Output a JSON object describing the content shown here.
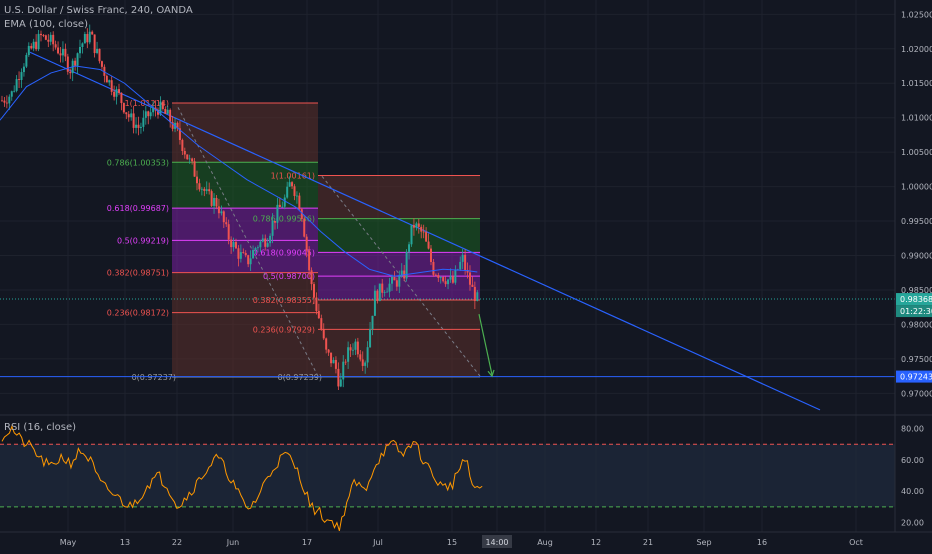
{
  "header": {
    "symbol": "U.S. Dollar / Swiss Franc, 240, OANDA",
    "ema_label": "EMA (100, close)",
    "rsi_label": "RSI (16, close)"
  },
  "colors": {
    "background": "#131722",
    "up": "#26a69a",
    "down": "#ef5350",
    "ema": "#2962ff",
    "trendline": "#2962ff",
    "rsi": "#ff9800",
    "fib_green": "#1b5e20",
    "fib_purple": "#7b1fa2",
    "fib_brown": "#5d2f2a"
  },
  "price_axis": {
    "labels": [
      "1.02500",
      "1.02000",
      "1.01500",
      "1.01000",
      "1.00500",
      "1.00000",
      "0.99500",
      "0.99000",
      "0.98500",
      "0.98000",
      "0.97500",
      "0.97000"
    ],
    "last_price": "0.98368",
    "countdown": "01:22:30",
    "marked_level": "0.97243"
  },
  "rsi_axis": {
    "labels": [
      "80.00",
      "60.00",
      "40.00",
      "20.00"
    ]
  },
  "time_axis": {
    "labels": [
      "May",
      "13",
      "22",
      "Jun",
      "17",
      "Jul",
      "15",
      "14:00",
      "Aug",
      "12",
      "21",
      "Sep",
      "16",
      "Oct"
    ]
  },
  "fib_left": {
    "levels": [
      {
        "label": "1(1.01214)",
        "value": 1.01214
      },
      {
        "label": "0.786(1.00353)",
        "value": 1.00353
      },
      {
        "label": "0.618(0.99687)",
        "value": 0.99687
      },
      {
        "label": "0.5(0.99219)",
        "value": 0.99219
      },
      {
        "label": "0.382(0.98751)",
        "value": 0.98751
      },
      {
        "label": "0.236(0.98172)",
        "value": 0.98172
      },
      {
        "label": "0(0.97237)",
        "value": 0.97237
      }
    ]
  },
  "fib_right": {
    "levels": [
      {
        "label": "1(1.00161)",
        "value": 1.00161
      },
      {
        "label": "0.786(0.99536)",
        "value": 0.99536
      },
      {
        "label": "0.618(0.99045)",
        "value": 0.99045
      },
      {
        "label": "0.5(0.98700)",
        "value": 0.987
      },
      {
        "label": "0.382(0.98355)",
        "value": 0.98355
      },
      {
        "label": "0.236(0.97929)",
        "value": 0.97929
      },
      {
        "label": "0(0.97239)",
        "value": 0.97239
      }
    ]
  },
  "chart_data": {
    "type": "candlestick",
    "title": "U.S. Dollar / Swiss Franc, 240, OANDA",
    "ylim": [
      0.967,
      1.0265
    ],
    "rsi_ylim": [
      14,
      88
    ],
    "rsi_bands": [
      70,
      30
    ],
    "price_path": [
      [
        0,
        1.0125
      ],
      [
        2,
        1.0135
      ],
      [
        4,
        1.0175
      ],
      [
        6,
        1.02
      ],
      [
        8,
        1.0218
      ],
      [
        10,
        1.021
      ],
      [
        12,
        1.0195
      ],
      [
        14,
        1.017
      ],
      [
        16,
        1.0205
      ],
      [
        18,
        1.0222
      ],
      [
        20,
        1.018
      ],
      [
        22,
        1.015
      ],
      [
        24,
        1.013
      ],
      [
        26,
        1.01
      ],
      [
        28,
        1.0085
      ],
      [
        30,
        1.0105
      ],
      [
        32,
        1.0115
      ],
      [
        34,
        1.01
      ],
      [
        36,
        1.0075
      ],
      [
        38,
        1.004
      ],
      [
        40,
        1.001
      ],
      [
        42,
        0.9985
      ],
      [
        44,
        0.9975
      ],
      [
        46,
        0.993
      ],
      [
        48,
        0.9905
      ],
      [
        50,
        0.989
      ],
      [
        52,
        0.9915
      ],
      [
        54,
        0.9925
      ],
      [
        56,
        0.996
      ],
      [
        58,
        0.9985
      ],
      [
        59,
        1.001
      ],
      [
        61,
        0.997
      ],
      [
        62,
        0.992
      ],
      [
        63,
        0.986
      ],
      [
        65,
        0.98
      ],
      [
        66,
        0.976
      ],
      [
        68,
        0.974
      ],
      [
        69,
        0.971
      ],
      [
        70,
        0.975
      ],
      [
        72,
        0.9775
      ],
      [
        74,
        0.9745
      ],
      [
        75,
        0.979
      ],
      [
        76,
        0.984
      ],
      [
        78,
        0.9855
      ],
      [
        80,
        0.986
      ],
      [
        82,
        0.987
      ],
      [
        83,
        0.992
      ],
      [
        84,
        0.9945
      ],
      [
        86,
        0.993
      ],
      [
        88,
        0.988
      ],
      [
        90,
        0.987
      ],
      [
        92,
        0.986
      ],
      [
        93,
        0.988
      ],
      [
        94,
        0.9895
      ],
      [
        95,
        0.987
      ],
      [
        96,
        0.985
      ],
      [
        97,
        0.9836
      ]
    ],
    "ema_path": [
      [
        -10,
        1.002
      ],
      [
        0,
        1.01
      ],
      [
        5,
        1.0145
      ],
      [
        10,
        1.0165
      ],
      [
        15,
        1.0175
      ],
      [
        20,
        1.017
      ],
      [
        25,
        1.015
      ],
      [
        30,
        1.012
      ],
      [
        35,
        1.009
      ],
      [
        40,
        1.006
      ],
      [
        45,
        1.0035
      ],
      [
        50,
        1.001
      ],
      [
        55,
        0.999
      ],
      [
        60,
        0.997
      ],
      [
        65,
        0.9935
      ],
      [
        70,
        0.9905
      ],
      [
        75,
        0.988
      ],
      [
        80,
        0.987
      ],
      [
        85,
        0.9875
      ],
      [
        90,
        0.988
      ],
      [
        95,
        0.9878
      ],
      [
        97,
        0.9876
      ]
    ],
    "rsi_values": [
      [
        0,
        75
      ],
      [
        2,
        80
      ],
      [
        4,
        72
      ],
      [
        6,
        68
      ],
      [
        8,
        60
      ],
      [
        10,
        55
      ],
      [
        12,
        62
      ],
      [
        14,
        58
      ],
      [
        16,
        66
      ],
      [
        18,
        60
      ],
      [
        20,
        45
      ],
      [
        22,
        40
      ],
      [
        24,
        35
      ],
      [
        26,
        30
      ],
      [
        28,
        36
      ],
      [
        30,
        45
      ],
      [
        32,
        50
      ],
      [
        34,
        42
      ],
      [
        36,
        30
      ],
      [
        38,
        38
      ],
      [
        40,
        46
      ],
      [
        42,
        55
      ],
      [
        44,
        62
      ],
      [
        46,
        52
      ],
      [
        48,
        40
      ],
      [
        50,
        28
      ],
      [
        52,
        35
      ],
      [
        54,
        48
      ],
      [
        56,
        58
      ],
      [
        58,
        64
      ],
      [
        60,
        55
      ],
      [
        62,
        40
      ],
      [
        63,
        30
      ],
      [
        65,
        26
      ],
      [
        66,
        22
      ],
      [
        68,
        20
      ],
      [
        69,
        16
      ],
      [
        70,
        30
      ],
      [
        72,
        46
      ],
      [
        74,
        40
      ],
      [
        76,
        56
      ],
      [
        78,
        66
      ],
      [
        80,
        70
      ],
      [
        82,
        62
      ],
      [
        83,
        70
      ],
      [
        84,
        72
      ],
      [
        86,
        60
      ],
      [
        88,
        50
      ],
      [
        90,
        42
      ],
      [
        92,
        45
      ],
      [
        93,
        52
      ],
      [
        94,
        60
      ],
      [
        95,
        56
      ],
      [
        96,
        44
      ],
      [
        97,
        40
      ],
      [
        98,
        44
      ]
    ]
  }
}
